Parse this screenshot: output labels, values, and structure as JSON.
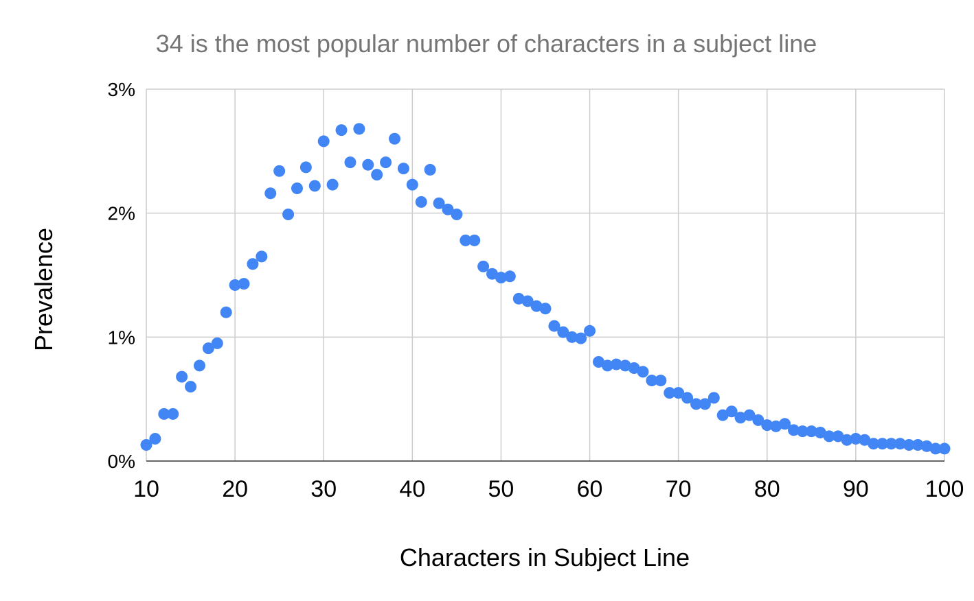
{
  "colors": {
    "point": "#4285f4",
    "grid": "#cccccc",
    "title": "#757575",
    "text": "#000000"
  },
  "chart_data": {
    "type": "scatter",
    "title": "34 is the most popular number of characters in a subject line",
    "xlabel": "Characters in Subject Line",
    "ylabel": "Prevalence",
    "xlim": [
      10,
      100
    ],
    "ylim": [
      0,
      3
    ],
    "x_ticks": [
      10,
      20,
      30,
      40,
      50,
      60,
      70,
      80,
      90,
      100
    ],
    "x_tick_labels": [
      "10",
      "20",
      "30",
      "40",
      "50",
      "60",
      "70",
      "80",
      "90",
      "100"
    ],
    "y_ticks": [
      0,
      1,
      2,
      3
    ],
    "y_tick_labels": [
      "0%",
      "1%",
      "2%",
      "3%"
    ],
    "y_unit": "%",
    "grid": true,
    "legend": "none",
    "series": [
      {
        "x": [
          10,
          11,
          12,
          13,
          14,
          15,
          16,
          17,
          18,
          19,
          20,
          21,
          22,
          23,
          24,
          25,
          26,
          27,
          28,
          29,
          30,
          31,
          32,
          33,
          34,
          35,
          36,
          37,
          38,
          39,
          40,
          41,
          42,
          43,
          44,
          45,
          46,
          47,
          48,
          49,
          50,
          51,
          52,
          53,
          54,
          55,
          56,
          57,
          58,
          59,
          60,
          61,
          62,
          63,
          64,
          65,
          66,
          67,
          68,
          69,
          70,
          71,
          72,
          73,
          74,
          75,
          76,
          77,
          78,
          79,
          80,
          81,
          82,
          83,
          84,
          85,
          86,
          87,
          88,
          89,
          90,
          91,
          92,
          93,
          94,
          95,
          96,
          97,
          98,
          99,
          100
        ],
        "y": [
          0.13,
          0.18,
          0.38,
          0.38,
          0.68,
          0.6,
          0.77,
          0.91,
          0.95,
          1.2,
          1.42,
          1.43,
          1.59,
          1.65,
          2.16,
          2.34,
          1.99,
          2.2,
          2.37,
          2.22,
          2.58,
          2.23,
          2.67,
          2.41,
          2.68,
          2.39,
          2.31,
          2.41,
          2.6,
          2.36,
          2.23,
          2.09,
          2.35,
          2.08,
          2.03,
          1.99,
          1.78,
          1.78,
          1.57,
          1.51,
          1.48,
          1.49,
          1.31,
          1.29,
          1.25,
          1.23,
          1.09,
          1.04,
          1.0,
          0.99,
          1.05,
          0.8,
          0.77,
          0.78,
          0.77,
          0.75,
          0.72,
          0.65,
          0.65,
          0.55,
          0.55,
          0.51,
          0.46,
          0.46,
          0.51,
          0.37,
          0.4,
          0.35,
          0.37,
          0.33,
          0.29,
          0.28,
          0.3,
          0.25,
          0.24,
          0.24,
          0.23,
          0.2,
          0.2,
          0.17,
          0.18,
          0.17,
          0.14,
          0.14,
          0.14,
          0.14,
          0.13,
          0.13,
          0.12,
          0.1,
          0.1
        ]
      }
    ]
  }
}
